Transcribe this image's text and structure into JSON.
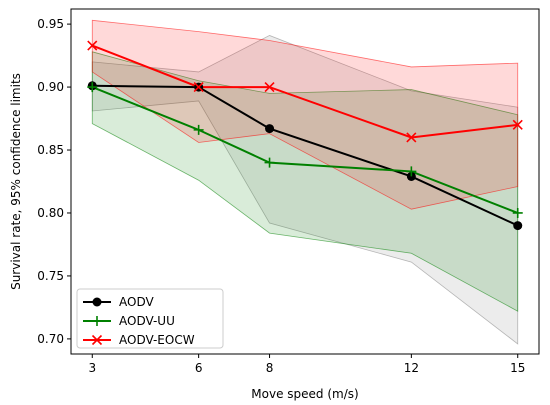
{
  "chart_data": {
    "type": "line",
    "xlabel": "Move speed (m/s)",
    "ylabel": "Survival rate, 95% confidence limits",
    "x": [
      3,
      6,
      8,
      12,
      15
    ],
    "xticks": [
      3,
      6,
      8,
      12,
      15
    ],
    "yticks": [
      0.7,
      0.75,
      0.8,
      0.85,
      0.9,
      0.95
    ],
    "xlim": [
      2.4,
      15.6
    ],
    "ylim": [
      0.688,
      0.962
    ],
    "grid": false,
    "legend_position": "lower-left",
    "series": [
      {
        "name": "AODV",
        "color": "#000000",
        "band_color": "#808080",
        "marker": "circle",
        "values": [
          0.901,
          0.9,
          0.867,
          0.829,
          0.79
        ],
        "upper": [
          0.92,
          0.912,
          0.941,
          0.897,
          0.884
        ],
        "lower": [
          0.881,
          0.889,
          0.792,
          0.761,
          0.696
        ]
      },
      {
        "name": "AODV-UU",
        "color": "#008000",
        "band_color": "#008000",
        "marker": "plus",
        "values": [
          0.9,
          0.866,
          0.84,
          0.833,
          0.8
        ],
        "upper": [
          0.928,
          0.905,
          0.895,
          0.898,
          0.878
        ],
        "lower": [
          0.871,
          0.826,
          0.784,
          0.768,
          0.722
        ]
      },
      {
        "name": "AODV-EOCW",
        "color": "#ff0000",
        "band_color": "#ff0000",
        "marker": "x",
        "values": [
          0.933,
          0.9,
          0.9,
          0.86,
          0.87
        ],
        "upper": [
          0.953,
          0.944,
          0.937,
          0.916,
          0.919
        ],
        "lower": [
          0.912,
          0.856,
          0.863,
          0.803,
          0.821
        ]
      }
    ]
  }
}
